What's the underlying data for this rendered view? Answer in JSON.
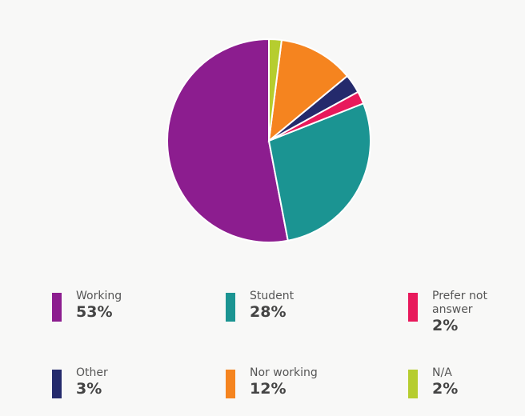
{
  "chart_data": {
    "type": "pie",
    "categories": [
      "Working",
      "Student",
      "Prefer not answer",
      "Other",
      "Nor working",
      "N/A"
    ],
    "values": [
      53,
      28,
      2,
      3,
      12,
      2
    ],
    "value_labels": [
      "53%",
      "28%",
      "2%",
      "3%",
      "12%",
      "2%"
    ],
    "colors": [
      "#8c1d8f",
      "#1b9492",
      "#e8195b",
      "#242a6c",
      "#f5841f",
      "#b6cd2f"
    ],
    "direction": "counterclockwise"
  }
}
